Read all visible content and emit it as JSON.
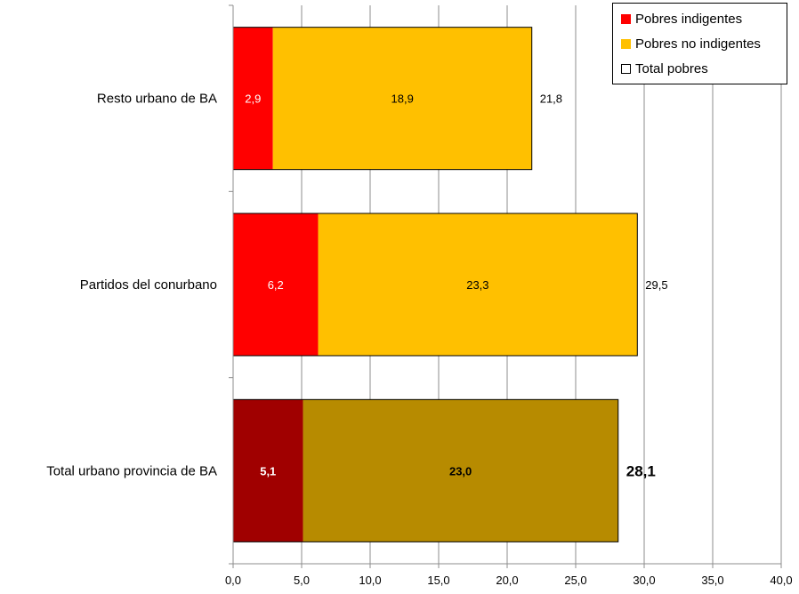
{
  "chart_data": {
    "type": "bar",
    "orientation": "horizontal",
    "stacked": true,
    "categories": [
      "Resto urbano de BA",
      "Partidos del conurbano",
      "Total urbano provincia de BA"
    ],
    "series": [
      {
        "name": "Pobres indigentes",
        "values": [
          2.9,
          6.2,
          5.1
        ],
        "labels": [
          "2,9",
          "6,2",
          "5,1"
        ],
        "colors": [
          "#ff0000",
          "#ff0000",
          "#a00000"
        ]
      },
      {
        "name": "Pobres no indigentes",
        "values": [
          18.9,
          23.3,
          23.0
        ],
        "labels": [
          "18,9",
          "23,3",
          "23,0"
        ],
        "colors": [
          "#ffc000",
          "#ffc000",
          "#b78b00"
        ]
      }
    ],
    "totals": {
      "name": "Total pobres",
      "values": [
        21.8,
        29.5,
        28.1
      ],
      "labels": [
        "21,8",
        "29,5",
        "28,1"
      ]
    },
    "xlim": [
      0,
      40
    ],
    "xticks": [
      "0,0",
      "5,0",
      "10,0",
      "15,0",
      "20,0",
      "25,0",
      "30,0",
      "35,0",
      "40,0"
    ],
    "grid": "vertical",
    "legend_position": "top-right",
    "legend": [
      {
        "label": "Pobres indigentes",
        "color": "#ff0000"
      },
      {
        "label": "Pobres no indigentes",
        "color": "#ffc000"
      },
      {
        "label": "Total pobres",
        "color": "#ffffff"
      }
    ]
  }
}
